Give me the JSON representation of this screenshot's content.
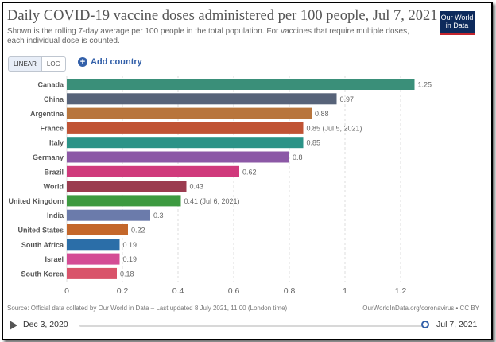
{
  "header": {
    "title": "Daily COVID-19 vaccine doses administered per 100 people, Jul 7, 2021",
    "subtitle": "Shown is the rolling 7-day average per 100 people in the total population. For vaccines that require multiple doses, each individual dose is counted.",
    "logo_line1": "Our World",
    "logo_line2": "in Data"
  },
  "controls": {
    "linear_label": "LINEAR",
    "log_label": "LOG",
    "add_country_label": "Add country"
  },
  "footer": {
    "source": "Source: Official data collated by Our World in Data – Last updated 8 July 2021, 11:00 (London time)",
    "url": "OurWorldInData.org/coronavirus • CC BY"
  },
  "timeline": {
    "start": "Dec 3, 2020",
    "end": "Jul 7, 2021",
    "position_fraction": 1.0
  },
  "chart_data": {
    "type": "bar",
    "orientation": "horizontal",
    "title": "Daily COVID-19 vaccine doses administered per 100 people, Jul 7, 2021",
    "xlim": [
      0,
      1.3
    ],
    "ticks": [
      0,
      0.2,
      0.4,
      0.6,
      0.8,
      1,
      1.2
    ],
    "tick_labels": [
      "0",
      "0.2",
      "0.4",
      "0.6",
      "0.8",
      "1",
      "1.2"
    ],
    "grid": true,
    "categories": [
      "Canada",
      "China",
      "Argentina",
      "France",
      "Italy",
      "Germany",
      "Brazil",
      "World",
      "United Kingdom",
      "India",
      "United States",
      "South Africa",
      "Israel",
      "South Korea"
    ],
    "values": [
      1.25,
      0.97,
      0.88,
      0.85,
      0.85,
      0.8,
      0.62,
      0.43,
      0.41,
      0.3,
      0.22,
      0.19,
      0.19,
      0.18
    ],
    "value_labels": [
      "1.25",
      "0.97",
      "0.88",
      "0.85 (Jul 5, 2021)",
      "0.85",
      "0.8",
      "0.62",
      "0.43",
      "0.41 (Jul 6, 2021)",
      "0.3",
      "0.22",
      "0.19",
      "0.19",
      "0.18"
    ],
    "colors": [
      "#3a8f79",
      "#576379",
      "#b8753c",
      "#c05334",
      "#2b9387",
      "#8c58a6",
      "#d03a7c",
      "#9b3b4f",
      "#3d9a40",
      "#6b7bab",
      "#c4672b",
      "#2b6ea8",
      "#d44c95",
      "#d9536a"
    ]
  }
}
